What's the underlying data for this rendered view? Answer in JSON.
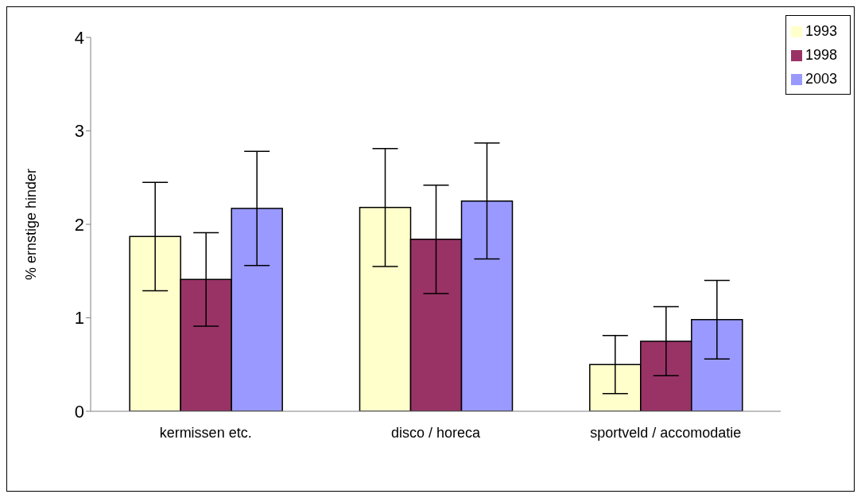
{
  "chart_data": {
    "type": "bar",
    "ylabel": "% ernstige hinder",
    "categories": [
      "kermissen etc.",
      "disco / horeca",
      "sportveld / accomodatie"
    ],
    "series": [
      {
        "name": "1993",
        "color": "#ffffcc",
        "values": [
          1.87,
          2.18,
          0.5
        ],
        "errors": [
          0.58,
          0.63,
          0.31
        ]
      },
      {
        "name": "1998",
        "color": "#993366",
        "values": [
          1.41,
          1.84,
          0.75
        ],
        "errors": [
          0.5,
          0.58,
          0.37
        ]
      },
      {
        "name": "2003",
        "color": "#9999ff",
        "values": [
          2.17,
          2.25,
          0.98
        ],
        "errors": [
          0.61,
          0.62,
          0.42
        ]
      }
    ],
    "ylim": [
      0,
      4
    ],
    "yticks": [
      0,
      1,
      2,
      3,
      4
    ],
    "grid": false,
    "legend": "top right"
  }
}
